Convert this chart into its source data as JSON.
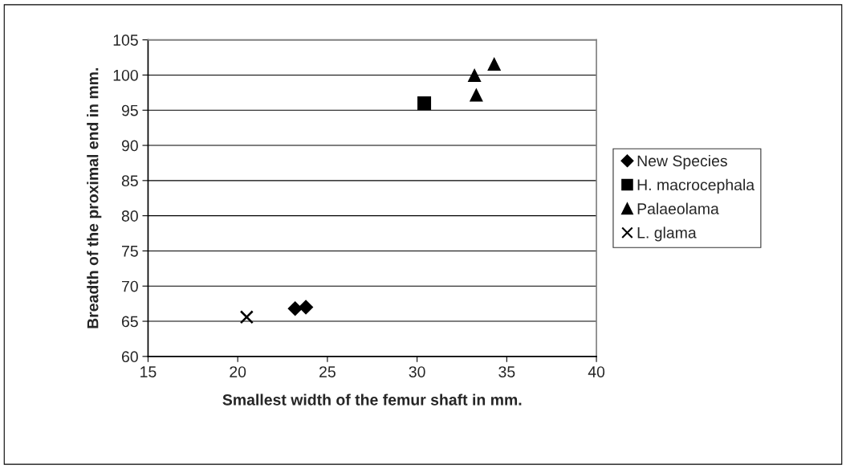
{
  "chart_data": {
    "type": "scatter",
    "xlabel": "Smallest width of the femur shaft in mm.",
    "ylabel": "Breadth of the proximal end in mm.",
    "xlim": [
      15,
      40
    ],
    "xticks": [
      15,
      20,
      25,
      30,
      35,
      40
    ],
    "ylim": [
      60,
      105
    ],
    "yticks": [
      60,
      65,
      70,
      75,
      80,
      85,
      90,
      95,
      100,
      105
    ],
    "grid": "y",
    "legend": "right",
    "series": [
      {
        "name": "New Species",
        "color": "#000000",
        "marker": "diamond",
        "x": [
          23.2,
          23.8
        ],
        "values": [
          66.8,
          67.0
        ]
      },
      {
        "name": "H. macrocephala",
        "color": "#000000",
        "marker": "square",
        "x": [
          30.4
        ],
        "values": [
          96.0
        ]
      },
      {
        "name": "Palaeolama",
        "color": "#000000",
        "marker": "triangle",
        "x": [
          33.2,
          33.3,
          34.3
        ],
        "values": [
          100.0,
          97.2,
          101.6
        ]
      },
      {
        "name": "L. glama",
        "color": "#000000",
        "marker": "cross",
        "x": [
          20.5
        ],
        "values": [
          65.6
        ]
      }
    ]
  }
}
